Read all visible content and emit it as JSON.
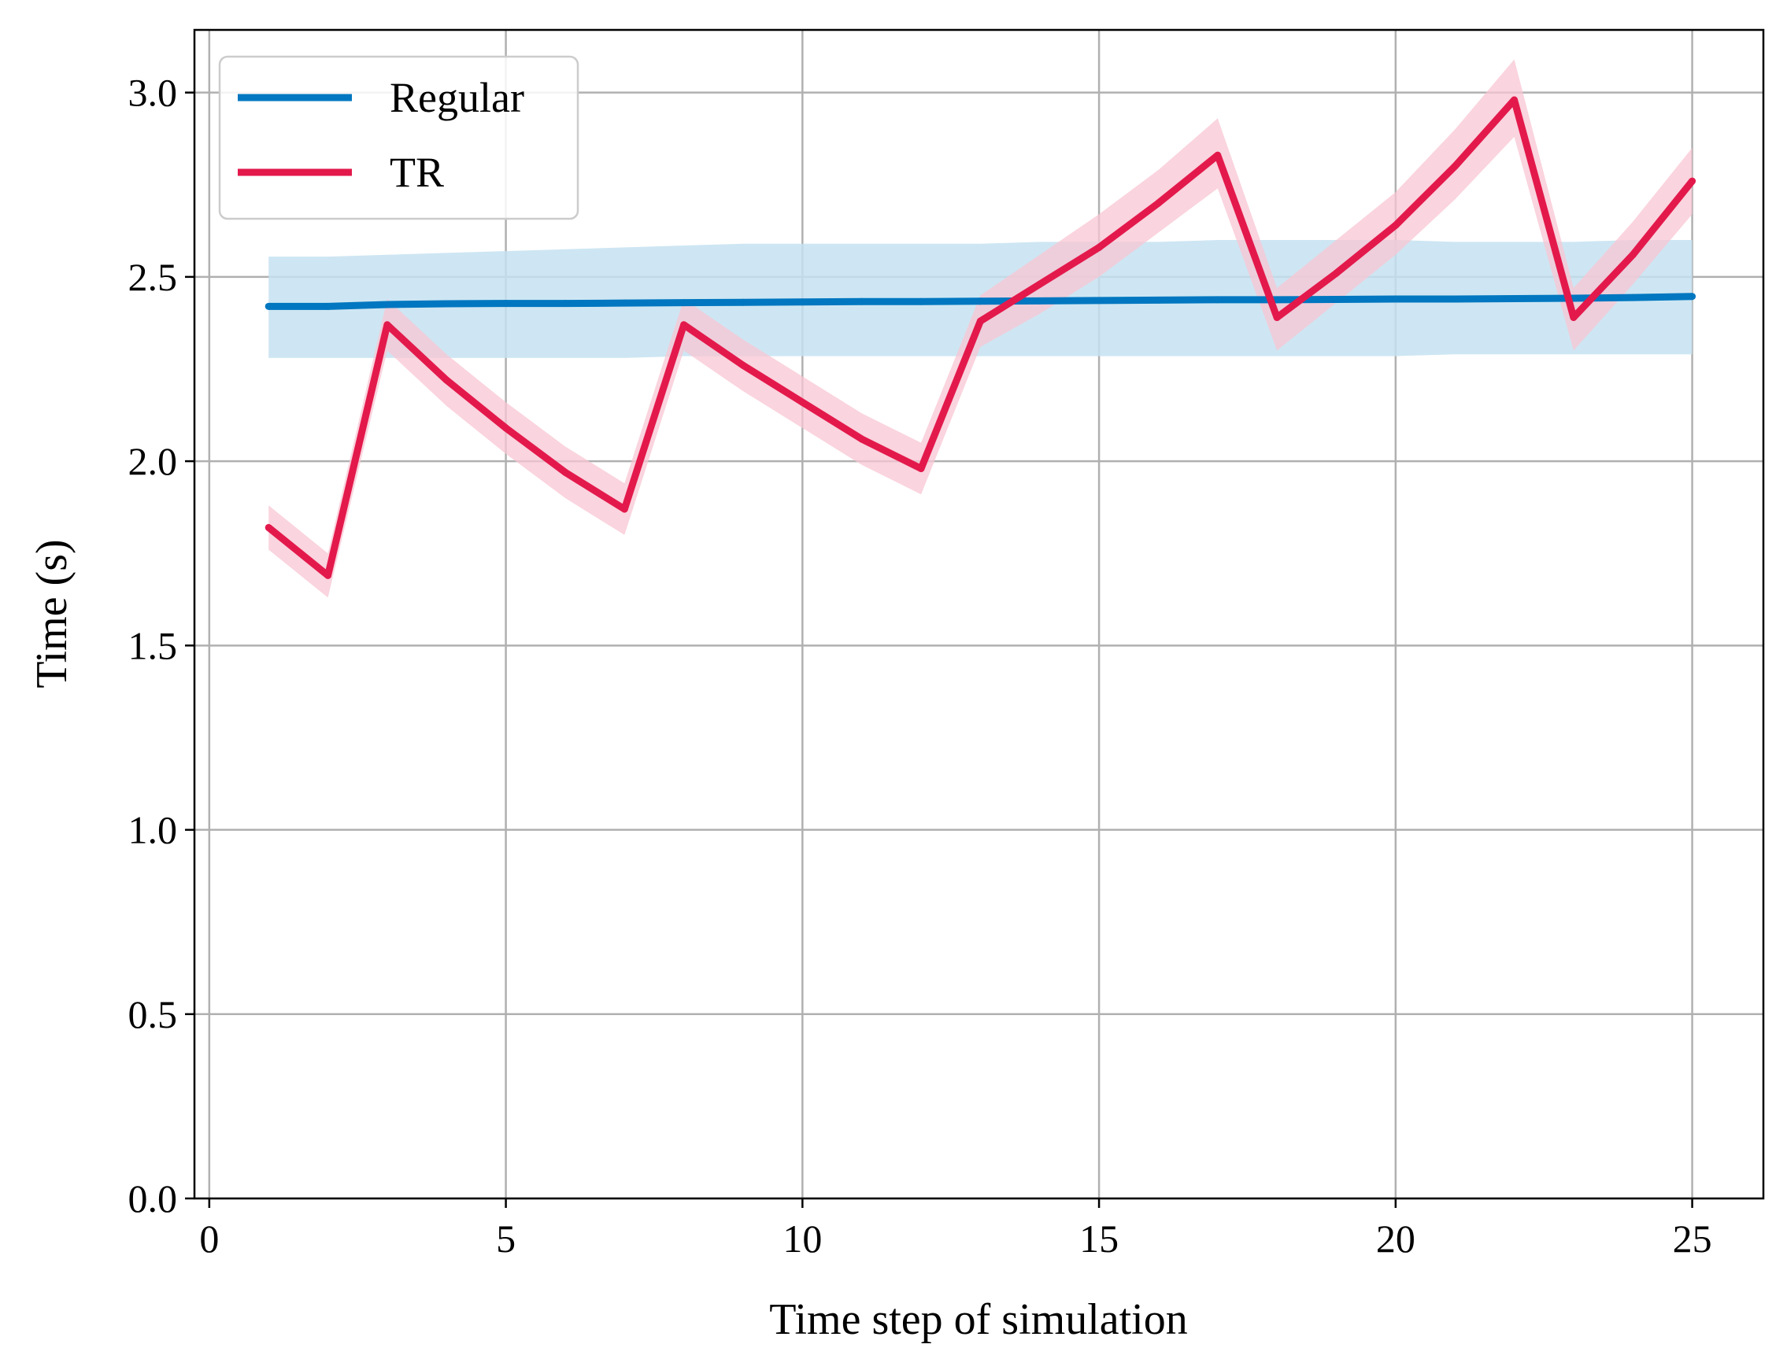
{
  "chart_data": {
    "type": "line",
    "title": "",
    "xlabel": "Time step of simulation",
    "ylabel": "Time (s)",
    "xlim": [
      -0.25,
      26.2
    ],
    "ylim": [
      0.0,
      3.17
    ],
    "x_ticks": [
      0,
      5,
      10,
      15,
      20,
      25
    ],
    "y_ticks": [
      0.0,
      0.5,
      1.0,
      1.5,
      2.0,
      2.5,
      3.0
    ],
    "x_tick_labels": [
      "0",
      "5",
      "10",
      "15",
      "20",
      "25"
    ],
    "y_tick_labels": [
      "0.0",
      "0.5",
      "1.0",
      "1.5",
      "2.0",
      "2.5",
      "3.0"
    ],
    "grid": true,
    "legend_position": "top-left",
    "x": [
      1,
      2,
      3,
      4,
      5,
      6,
      7,
      8,
      9,
      10,
      11,
      12,
      13,
      14,
      15,
      16,
      17,
      18,
      19,
      20,
      21,
      22,
      23,
      24,
      25
    ],
    "series": [
      {
        "name": "Regular",
        "color": "#0077c0",
        "band_color": "#c6e2f1",
        "values": [
          2.42,
          2.42,
          2.425,
          2.427,
          2.428,
          2.428,
          2.429,
          2.43,
          2.431,
          2.432,
          2.433,
          2.433,
          2.434,
          2.435,
          2.436,
          2.437,
          2.438,
          2.438,
          2.439,
          2.44,
          2.44,
          2.441,
          2.442,
          2.444,
          2.447
        ],
        "lower": [
          2.28,
          2.28,
          2.28,
          2.28,
          2.28,
          2.28,
          2.28,
          2.285,
          2.285,
          2.285,
          2.285,
          2.285,
          2.285,
          2.285,
          2.285,
          2.285,
          2.285,
          2.285,
          2.285,
          2.285,
          2.29,
          2.29,
          2.29,
          2.29,
          2.29
        ],
        "upper": [
          2.555,
          2.555,
          2.56,
          2.565,
          2.57,
          2.575,
          2.58,
          2.585,
          2.59,
          2.59,
          2.59,
          2.59,
          2.59,
          2.595,
          2.595,
          2.595,
          2.6,
          2.6,
          2.6,
          2.6,
          2.595,
          2.595,
          2.595,
          2.6,
          2.6
        ]
      },
      {
        "name": "TR",
        "color": "#e3194c",
        "band_color": "#f8c6d3",
        "values": [
          1.82,
          1.69,
          2.37,
          2.22,
          2.09,
          1.97,
          1.87,
          2.37,
          2.26,
          2.16,
          2.06,
          1.98,
          2.38,
          2.48,
          2.58,
          2.7,
          2.83,
          2.39,
          2.51,
          2.64,
          2.8,
          2.98,
          2.39,
          2.56,
          2.76
        ],
        "lower": [
          1.76,
          1.63,
          2.3,
          2.15,
          2.02,
          1.9,
          1.8,
          2.3,
          2.19,
          2.09,
          1.99,
          1.91,
          2.31,
          2.4,
          2.5,
          2.62,
          2.74,
          2.3,
          2.43,
          2.56,
          2.71,
          2.88,
          2.3,
          2.48,
          2.67
        ],
        "upper": [
          1.88,
          1.75,
          2.44,
          2.29,
          2.16,
          2.04,
          1.94,
          2.44,
          2.33,
          2.23,
          2.13,
          2.05,
          2.45,
          2.56,
          2.67,
          2.79,
          2.93,
          2.47,
          2.6,
          2.73,
          2.9,
          3.09,
          2.47,
          2.65,
          2.85
        ]
      }
    ]
  }
}
